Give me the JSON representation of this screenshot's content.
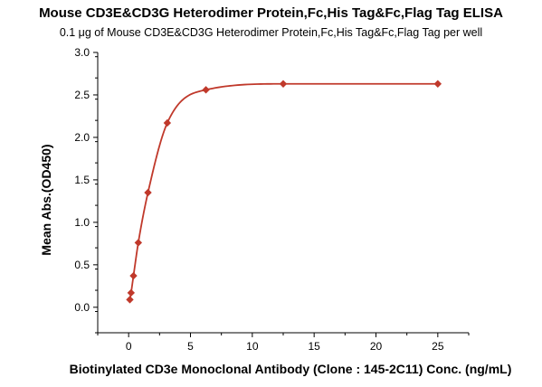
{
  "chart_data": {
    "type": "scatter",
    "title": "Mouse CD3E&CD3G Heterodimer Protein,Fc,His Tag&Fc,Flag Tag ELISA",
    "subtitle": "0.1 μg of Mouse CD3E&CD3G Heterodimer Protein,Fc,His Tag&Fc,Flag Tag per well",
    "xlabel": "Biotinylated CD3e Monoclonal Antibody (Clone : 145-2C11) Conc. (ng/mL)",
    "ylabel": "Mean Abs.(OD450)",
    "xlim": [
      -2.5,
      27.5
    ],
    "ylim": [
      -0.3,
      3.0
    ],
    "x_ticks": [
      0,
      5,
      10,
      15,
      20,
      25
    ],
    "y_ticks": [
      0.0,
      0.5,
      1.0,
      1.5,
      2.0,
      2.5,
      3.0
    ],
    "x_tick_labels": [
      "0",
      "5",
      "10",
      "15",
      "20",
      "25"
    ],
    "y_tick_labels": [
      "0.0",
      "0.5",
      "1.0",
      "1.5",
      "2.0",
      "2.5",
      "3.0"
    ],
    "grid": false,
    "color": "#c0392b",
    "series": [
      {
        "x": [
          0.098,
          0.195,
          0.391,
          0.781,
          1.563,
          3.125,
          6.25,
          12.5,
          25
        ],
        "values": [
          0.09,
          0.17,
          0.37,
          0.76,
          1.35,
          2.17,
          2.56,
          2.63,
          2.63
        ],
        "marker": "diamond",
        "fit": "smooth-curve"
      }
    ]
  }
}
